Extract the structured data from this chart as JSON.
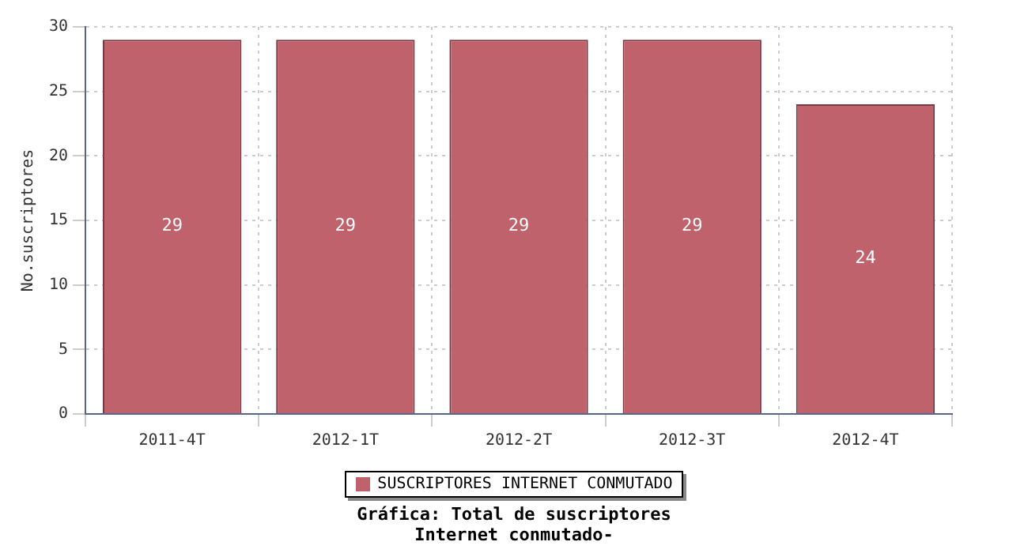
{
  "chart_data": {
    "type": "bar",
    "title": "Gráfica: Total de suscriptores Internet conmutado-",
    "ylabel": "No.suscriptores",
    "categories": [
      "2011-4T",
      "2012-1T",
      "2012-2T",
      "2012-3T",
      "2012-4T"
    ],
    "series": [
      {
        "name": "SUSCRIPTORES INTERNET CONMUTADO",
        "color": "#c0626b",
        "values": [
          29,
          29,
          29,
          29,
          24
        ]
      }
    ],
    "ylim": [
      0,
      30
    ],
    "yticks": [
      0,
      5,
      10,
      15,
      20,
      25,
      30
    ],
    "grid": true,
    "legend": "bottom",
    "data_labels": true
  }
}
